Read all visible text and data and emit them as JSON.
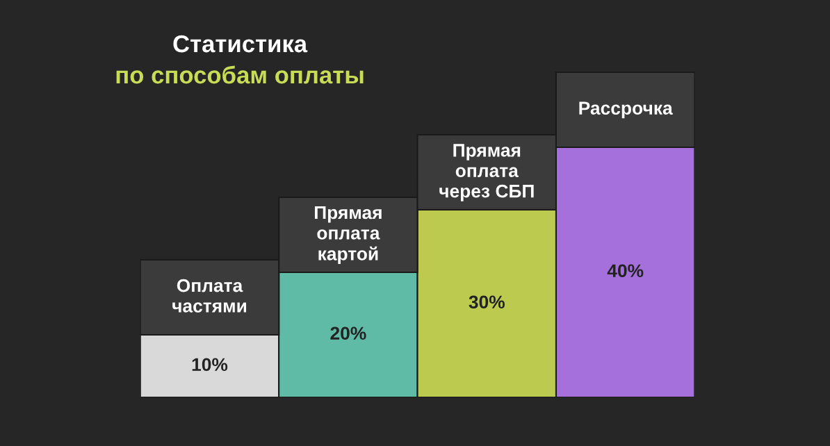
{
  "chart_data": {
    "type": "bar",
    "title": "Статистика",
    "subtitle": "по способам оплаты",
    "categories": [
      "Оплата\nчастями",
      "Прямая\nоплата\nкартой",
      "Прямая\nоплата\nчерез СБП",
      "Рассрочка"
    ],
    "values": [
      10,
      20,
      30,
      40
    ],
    "colors": [
      "#d9d9d9",
      "#5fbba6",
      "#bccb50",
      "#a56fdc"
    ],
    "value_labels": [
      "10%",
      "20%",
      "30%",
      "40%"
    ]
  }
}
